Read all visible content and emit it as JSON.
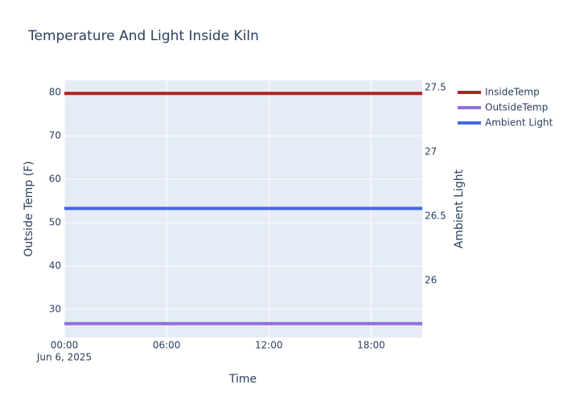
{
  "chart_data": {
    "type": "line",
    "title": "Temperature And Light Inside Kiln",
    "x_label": "Time",
    "y_label": "Outside Temp (F)",
    "y2_label": "Ambient Light",
    "x": [
      "2025-06-06T00:00",
      "2025-06-06T21:00"
    ],
    "series": [
      {
        "name": "InsideTemp",
        "color": "#b22222",
        "values": [
          79.8,
          79.8
        ],
        "axis": "y"
      },
      {
        "name": "OutsideTemp",
        "color": "#9370db",
        "values": [
          26.7,
          26.7
        ],
        "axis": "y"
      },
      {
        "name": "Ambient Light",
        "color": "#4169e1",
        "values": [
          26.56,
          26.56
        ],
        "axis": "y2"
      }
    ],
    "xlim": [
      "2025-06-06T00:00",
      "2025-06-06T21:00"
    ],
    "xticks": [
      {
        "value": "2025-06-06T00:00",
        "label": "00:00"
      },
      {
        "value": "2025-06-06T06:00",
        "label": "06:00"
      },
      {
        "value": "2025-06-06T12:00",
        "label": "12:00"
      },
      {
        "value": "2025-06-06T18:00",
        "label": "18:00"
      }
    ],
    "xtick_sublabel": "Jun 6, 2025",
    "ylim": [
      23.5,
      82.8
    ],
    "yticks": [
      30,
      40,
      50,
      60,
      70,
      80
    ],
    "y2lim": [
      25.556,
      27.556
    ],
    "y2ticks": [
      26,
      26.5,
      27,
      27.5
    ],
    "grid": true,
    "legend": "outside-right"
  }
}
